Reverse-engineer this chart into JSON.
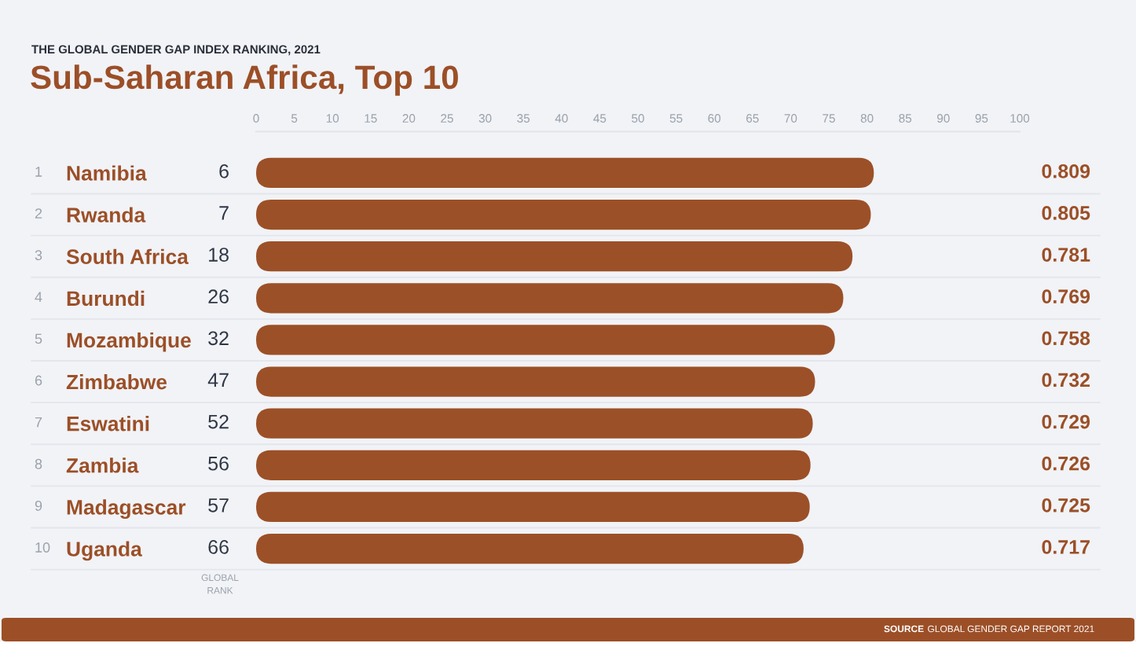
{
  "chart_data": {
    "type": "bar",
    "orientation": "horizontal",
    "subtitle": "THE GLOBAL GENDER GAP INDEX RANKING, 2021",
    "title": "Sub-Saharan Africa, Top 10",
    "categories": [
      "Namibia",
      "Rwanda",
      "South Africa",
      "Burundi",
      "Mozambique",
      "Zimbabwe",
      "Eswatini",
      "Zambia",
      "Madagascar",
      "Uganda"
    ],
    "values": [
      0.809,
      0.805,
      0.781,
      0.769,
      0.758,
      0.732,
      0.729,
      0.726,
      0.725,
      0.717
    ],
    "data_labels": true,
    "color": "#9c5027",
    "xlim": [
      0,
      1
    ],
    "x2lim": [
      0,
      100
    ],
    "x2ticks": [
      0,
      5,
      10,
      15,
      20,
      25,
      30,
      35,
      40,
      45,
      50,
      55,
      60,
      65,
      70,
      75,
      80,
      85,
      90,
      95,
      100
    ],
    "annotations": [
      "GLOBAL\nRANK",
      "SOURCE GLOBAL GENDER GAP REPORT 2021",
      "1",
      "6",
      "2",
      "7",
      "3",
      "18",
      "4",
      "26",
      "5",
      "32",
      "6",
      "47",
      "7",
      "52",
      "8",
      "56",
      "9",
      "57",
      "10",
      "66"
    ]
  }
}
